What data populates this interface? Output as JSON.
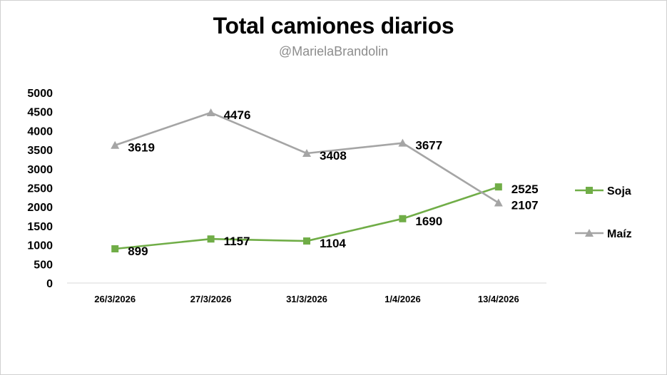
{
  "chart_data": {
    "type": "line",
    "title": "Total camiones diarios",
    "subtitle": "@MarielaBrandolin",
    "categories": [
      "26/3/2026",
      "27/3/2026",
      "31/3/2026",
      "1/4/2026",
      "13/4/2026"
    ],
    "ylim": [
      0,
      5000
    ],
    "yticks": [
      0,
      500,
      1000,
      1500,
      2000,
      2500,
      3000,
      3500,
      4000,
      4500,
      5000
    ],
    "grid": false,
    "legend_position": "right",
    "data_labels": true,
    "series": [
      {
        "name": "Soja",
        "values": [
          899,
          1157,
          1104,
          1690,
          2525
        ],
        "color": "#70ad47",
        "marker": "square"
      },
      {
        "name": "Maíz",
        "values": [
          3619,
          4476,
          3408,
          3677,
          2107
        ],
        "color": "#a5a5a5",
        "marker": "triangle"
      }
    ]
  }
}
